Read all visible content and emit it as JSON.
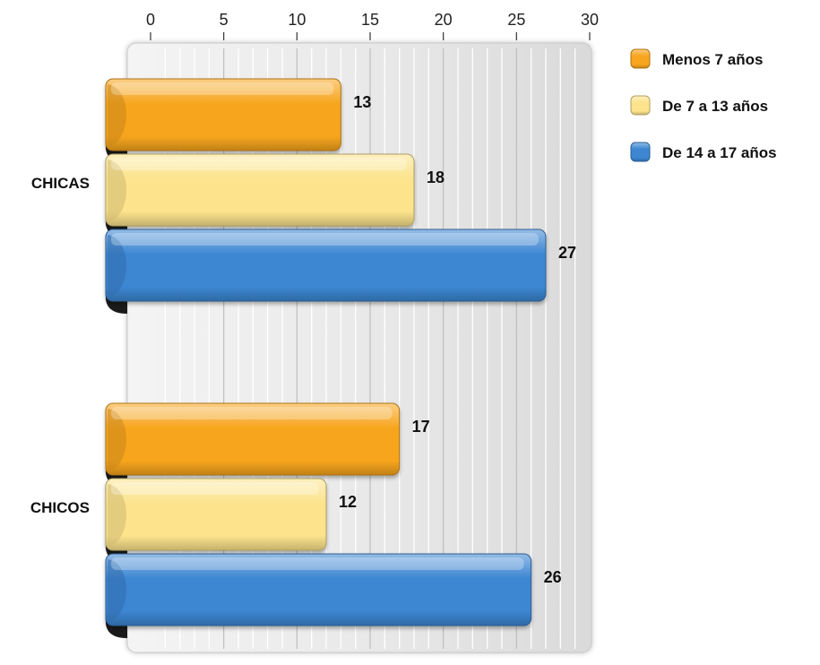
{
  "chart_data": {
    "type": "bar",
    "orientation": "horizontal",
    "title": "",
    "xlabel": "",
    "ylabel": "",
    "categories": [
      "CHICAS",
      "CHICOS"
    ],
    "series": [
      {
        "name": "Menos 7 años",
        "values": [
          13,
          17
        ],
        "color": "#F7A51E"
      },
      {
        "name": "De 7 a 13 años",
        "values": [
          18,
          12
        ],
        "color": "#FCE38C"
      },
      {
        "name": "De 14 a 17 años",
        "values": [
          27,
          26
        ],
        "color": "#3C86D2"
      }
    ],
    "xlim": [
      0,
      30
    ],
    "x_ticks": [
      0,
      5,
      10,
      15,
      20,
      25,
      30
    ],
    "x_axis_position": "top",
    "grid": true,
    "legend_position": "top-right",
    "data_labels": true
  }
}
